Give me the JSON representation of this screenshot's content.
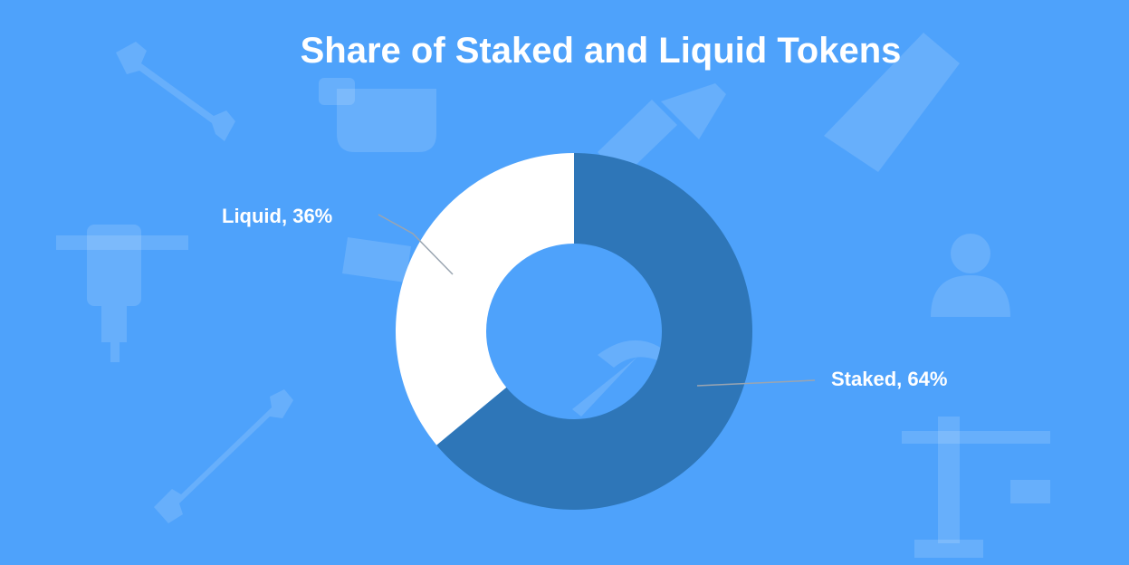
{
  "colors": {
    "background": "#4ea2fb",
    "staked": "#2e76b8",
    "liquid": "#ffffff",
    "leader_line": "#9aa5b1",
    "text": "#ffffff"
  },
  "background_icons": [
    "wrench-icon",
    "paint-bucket-icon",
    "paintbrush-icon",
    "saw-icon",
    "jackhammer-icon",
    "handsaw-icon",
    "worker-icon",
    "hammer-icon",
    "wrench-icon",
    "crane-icon"
  ],
  "chart_data": {
    "type": "pie",
    "style": "donut",
    "title": "Share of Staked and Liquid Tokens",
    "slices": [
      {
        "name": "Staked",
        "value": 64,
        "label": "Staked, 64%",
        "color": "#2e76b8"
      },
      {
        "name": "Liquid",
        "value": 36,
        "label": "Liquid, 36%",
        "color": "#ffffff"
      }
    ],
    "legend": "none",
    "data_labels": "outside-with-leader-lines"
  }
}
